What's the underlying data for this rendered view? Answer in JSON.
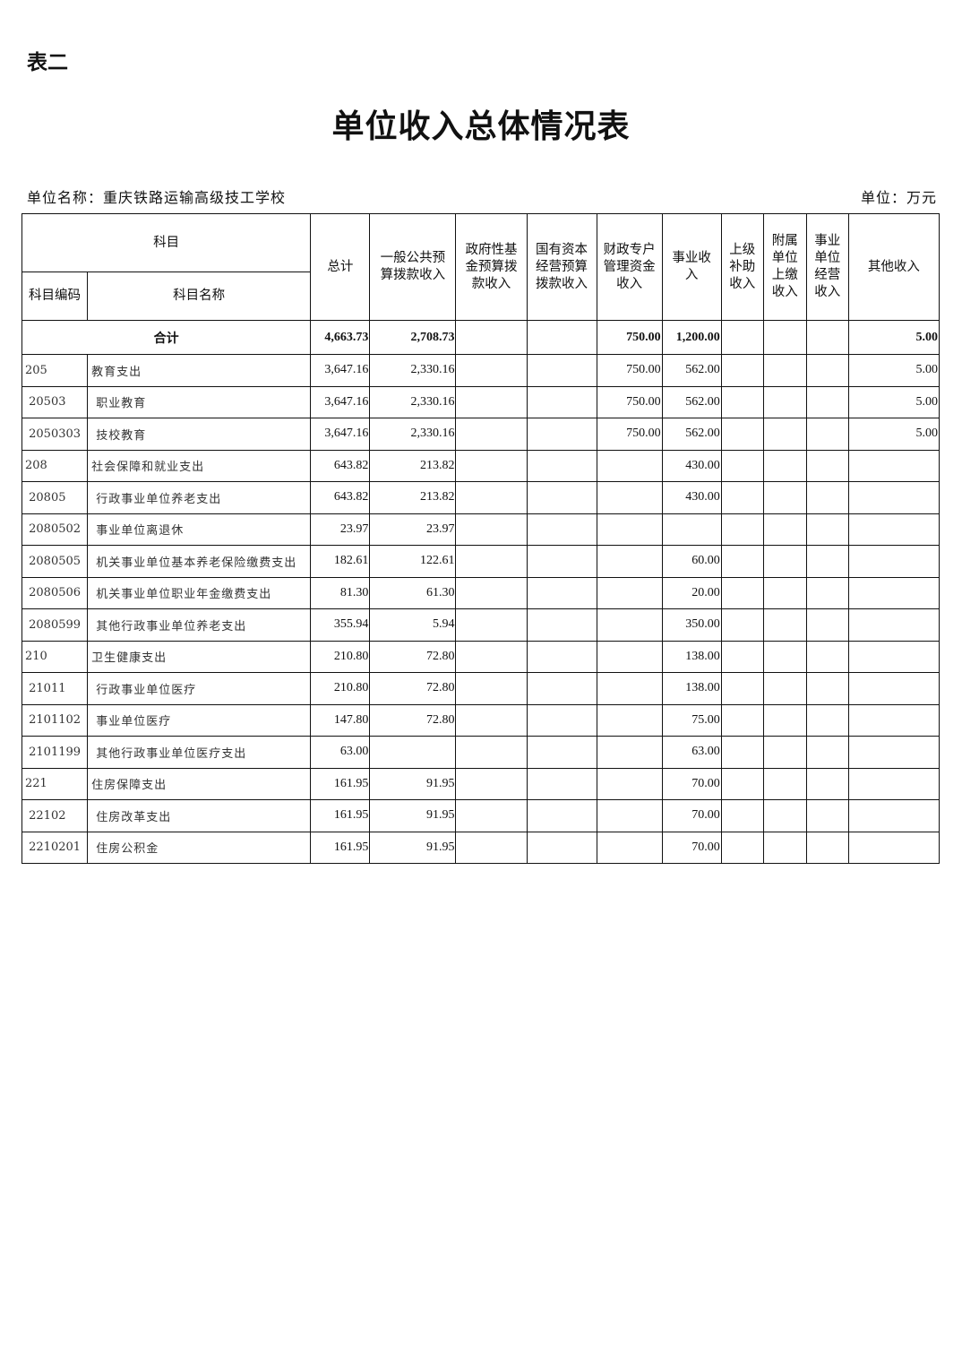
{
  "tag": "表二",
  "title": "单位收入总体情况表",
  "unit_name": "单位名称：重庆铁路运输高级技工学校",
  "unit": "单位：万元",
  "headers": {
    "subject": "科目",
    "code": "科目编码",
    "name": "科目名称",
    "cols": [
      "总计",
      "一般公共预\n算拨款收入",
      "政府性基\n金预算拨\n款收入",
      "国有资本\n经营预算\n拨款收入",
      "财政专户\n管理资金\n收入",
      "事业收\n入",
      "上级\n补助\n收入",
      "附属\n单位\n上缴\n收入",
      "事业\n单位\n经营\n收入",
      "其他收入"
    ]
  },
  "total": {
    "label": "合计",
    "values": [
      "4,663.73",
      "2,708.73",
      "",
      "",
      "750.00",
      "1,200.00",
      "",
      "",
      "",
      "5.00"
    ]
  },
  "rows": [
    {
      "code": "205",
      "name": "教育支出",
      "values": [
        "3,647.16",
        "2,330.16",
        "",
        "",
        "750.00",
        "562.00",
        "",
        "",
        "",
        "5.00"
      ]
    },
    {
      "code": " 20503",
      "name": " 职业教育",
      "values": [
        "3,647.16",
        "2,330.16",
        "",
        "",
        "750.00",
        "562.00",
        "",
        "",
        "",
        "5.00"
      ]
    },
    {
      "code": " 2050303",
      "name": " 技校教育",
      "values": [
        "3,647.16",
        "2,330.16",
        "",
        "",
        "750.00",
        "562.00",
        "",
        "",
        "",
        "5.00"
      ]
    },
    {
      "code": "208",
      "name": "社会保障和就业支出",
      "values": [
        "643.82",
        "213.82",
        "",
        "",
        "",
        "430.00",
        "",
        "",
        "",
        ""
      ]
    },
    {
      "code": " 20805",
      "name": " 行政事业单位养老支出",
      "values": [
        "643.82",
        "213.82",
        "",
        "",
        "",
        "430.00",
        "",
        "",
        "",
        ""
      ]
    },
    {
      "code": " 2080502",
      "name": " 事业单位离退休",
      "values": [
        "23.97",
        "23.97",
        "",
        "",
        "",
        "",
        "",
        "",
        "",
        ""
      ]
    },
    {
      "code": " 2080505",
      "name": " 机关事业单位基本养老保险缴费支出",
      "values": [
        "182.61",
        "122.61",
        "",
        "",
        "",
        "60.00",
        "",
        "",
        "",
        ""
      ]
    },
    {
      "code": " 2080506",
      "name": " 机关事业单位职业年金缴费支出",
      "values": [
        "81.30",
        "61.30",
        "",
        "",
        "",
        "20.00",
        "",
        "",
        "",
        ""
      ]
    },
    {
      "code": " 2080599",
      "name": " 其他行政事业单位养老支出",
      "values": [
        "355.94",
        "5.94",
        "",
        "",
        "",
        "350.00",
        "",
        "",
        "",
        ""
      ]
    },
    {
      "code": "210",
      "name": "卫生健康支出",
      "values": [
        "210.80",
        "72.80",
        "",
        "",
        "",
        "138.00",
        "",
        "",
        "",
        ""
      ]
    },
    {
      "code": " 21011",
      "name": " 行政事业单位医疗",
      "values": [
        "210.80",
        "72.80",
        "",
        "",
        "",
        "138.00",
        "",
        "",
        "",
        ""
      ]
    },
    {
      "code": " 2101102",
      "name": " 事业单位医疗",
      "values": [
        "147.80",
        "72.80",
        "",
        "",
        "",
        "75.00",
        "",
        "",
        "",
        ""
      ]
    },
    {
      "code": " 2101199",
      "name": " 其他行政事业单位医疗支出",
      "values": [
        "63.00",
        "",
        "",
        "",
        "",
        "63.00",
        "",
        "",
        "",
        ""
      ]
    },
    {
      "code": "221",
      "name": "住房保障支出",
      "values": [
        "161.95",
        "91.95",
        "",
        "",
        "",
        "70.00",
        "",
        "",
        "",
        ""
      ]
    },
    {
      "code": " 22102",
      "name": " 住房改革支出",
      "values": [
        "161.95",
        "91.95",
        "",
        "",
        "",
        "70.00",
        "",
        "",
        "",
        ""
      ]
    },
    {
      "code": " 2210201",
      "name": " 住房公积金",
      "values": [
        "161.95",
        "91.95",
        "",
        "",
        "",
        "70.00",
        "",
        "",
        "",
        ""
      ]
    }
  ]
}
